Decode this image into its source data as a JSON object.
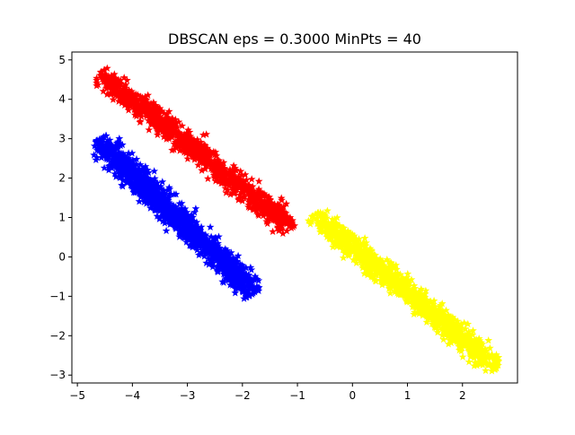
{
  "chart_data": {
    "type": "scatter",
    "title": "DBSCAN eps = 0.3000 MinPts = 40",
    "xlabel": "",
    "ylabel": "",
    "xlim": [
      -5.1,
      3.0
    ],
    "ylim": [
      -3.2,
      5.2
    ],
    "xticks": [
      -5,
      -4,
      -3,
      -2,
      -1,
      0,
      1,
      2
    ],
    "yticks": [
      -3,
      -2,
      -1,
      0,
      1,
      2,
      3,
      4,
      5
    ],
    "xtick_labels": [
      "−5",
      "−4",
      "−3",
      "−2",
      "−1",
      "0",
      "1",
      "2"
    ],
    "ytick_labels": [
      "−3",
      "−2",
      "−1",
      "0",
      "1",
      "2",
      "3",
      "4",
      "5"
    ],
    "grid": false,
    "marker": "star",
    "clusters": [
      {
        "color": "#ff0000",
        "point_count": 1200,
        "start": [
          -4.5,
          4.55
        ],
        "end": [
          -1.2,
          0.85
        ],
        "spread": 0.2,
        "x_range": [
          -4.65,
          -1.0
        ],
        "y_range": [
          0.55,
          4.8
        ]
      },
      {
        "color": "#0000ff",
        "point_count": 1400,
        "start": [
          -4.55,
          2.85
        ],
        "end": [
          -1.85,
          -0.8
        ],
        "spread": 0.22,
        "x_range": [
          -4.75,
          -1.7
        ],
        "y_range": [
          -1.1,
          3.15
        ]
      },
      {
        "color": "#ffff00",
        "point_count": 1200,
        "start": [
          -0.6,
          0.95
        ],
        "end": [
          2.55,
          -2.7
        ],
        "spread": 0.2,
        "x_range": [
          -0.8,
          2.65
        ],
        "y_range": [
          -2.9,
          1.4
        ]
      }
    ]
  }
}
